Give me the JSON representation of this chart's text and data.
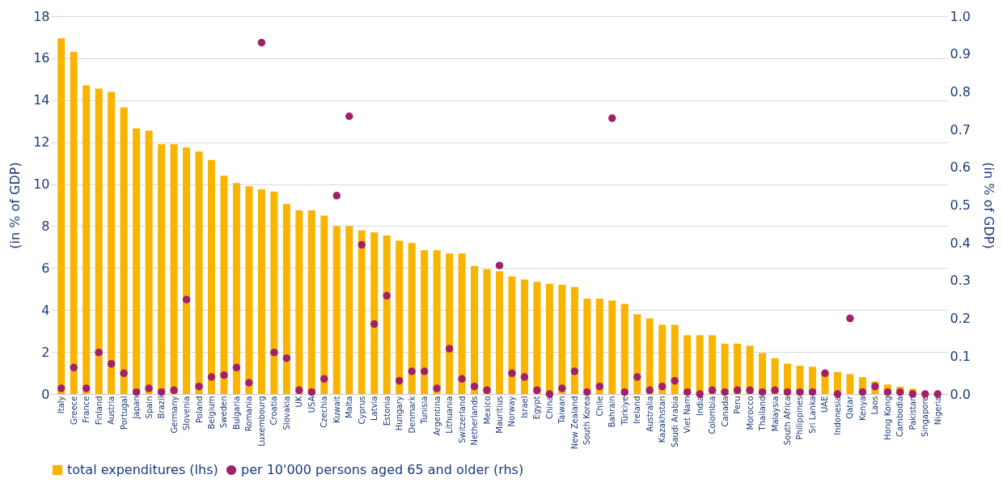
{
  "chart_data": {
    "type": "bar",
    "ylabel": "(in % of GDP)",
    "y2label": "(in % of GDP)",
    "categories": [
      "Italy",
      "Greece",
      "France",
      "Finland",
      "Austria",
      "Portugal",
      "Japan",
      "Spain",
      "Brazil",
      "Germany",
      "Slovenia",
      "Poland",
      "Belgium",
      "Sweden",
      "Bulgaria",
      "Romania",
      "Luxembourg",
      "Croatia",
      "Slovakia",
      "UK",
      "USA",
      "Czechia",
      "Kuwait",
      "Malta",
      "Cyprus",
      "Latvia",
      "Estonia",
      "Hungary",
      "Denmark",
      "Tunisia",
      "Argentina",
      "Lithuania",
      "Switzerland",
      "Netherlands",
      "Mexico",
      "Mauritius",
      "Norway",
      "Israel",
      "Egypt",
      "China",
      "Taiwan",
      "New Zealand",
      "South Korea",
      "Chile",
      "Bahrain",
      "Türkiye",
      "Ireland",
      "Australia",
      "Kazakhstan",
      "Saudi Arabia",
      "Viet Nam",
      "India",
      "Colombia",
      "Canada",
      "Peru",
      "Morocco",
      "Thailand",
      "Malaysia",
      "South Africa",
      "Philippines",
      "Sri Lanka",
      "UAE",
      "Indonesia",
      "Qatar",
      "Kenya",
      "Laos",
      "Hong Kong",
      "Cambodia",
      "Pakistan",
      "Singapore",
      "Nigeria"
    ],
    "series": [
      {
        "name": "total expenditures (lhs)",
        "type": "bar",
        "color": "#f9b400",
        "values": [
          16.95,
          16.3,
          14.7,
          14.55,
          14.4,
          13.65,
          12.65,
          12.55,
          11.9,
          11.9,
          11.75,
          11.55,
          11.15,
          10.4,
          10.05,
          9.9,
          9.75,
          9.65,
          9.05,
          8.75,
          8.75,
          8.5,
          8.0,
          8.0,
          7.8,
          7.7,
          7.55,
          7.3,
          7.2,
          6.85,
          6.85,
          6.7,
          6.7,
          6.1,
          5.95,
          5.85,
          5.6,
          5.45,
          5.35,
          5.25,
          5.2,
          5.1,
          4.55,
          4.55,
          4.45,
          4.3,
          3.8,
          3.6,
          3.3,
          3.3,
          2.8,
          2.8,
          2.8,
          2.4,
          2.4,
          2.3,
          1.95,
          1.7,
          1.45,
          1.35,
          1.3,
          1.1,
          1.05,
          0.95,
          0.8,
          0.6,
          0.45,
          0.35,
          0.25,
          0.0,
          0.0
        ]
      },
      {
        "name": "per 10'000 persons aged 65 and older (rhs)",
        "type": "scatter",
        "axis": "y2",
        "color": "#a0206a",
        "values": [
          0.015,
          0.07,
          0.015,
          0.11,
          0.08,
          0.055,
          0.005,
          0.015,
          0.005,
          0.01,
          0.25,
          0.02,
          0.045,
          0.05,
          0.07,
          0.03,
          0.93,
          0.11,
          0.095,
          0.01,
          0.005,
          0.04,
          0.525,
          0.735,
          0.395,
          0.185,
          0.26,
          0.035,
          0.06,
          0.06,
          0.015,
          0.12,
          0.04,
          0.02,
          0.01,
          0.34,
          0.055,
          0.045,
          0.01,
          0.0,
          0.015,
          0.06,
          0.005,
          0.02,
          0.73,
          0.005,
          0.045,
          0.01,
          0.02,
          0.035,
          0.005,
          0.0,
          0.01,
          0.005,
          0.01,
          0.01,
          0.005,
          0.01,
          0.005,
          0.005,
          0.005,
          0.055,
          0.0,
          0.2,
          0.005,
          0.02,
          0.005,
          0.005,
          0.0,
          0.0,
          0.0
        ]
      }
    ],
    "ylim": [
      0,
      18
    ],
    "yticks": [
      0,
      2,
      4,
      6,
      8,
      10,
      12,
      14,
      16,
      18
    ],
    "y2lim": [
      0,
      1.0
    ],
    "y2ticks": [
      {
        "value": 0,
        "label": "0.0"
      },
      0.1,
      0.2,
      0.3,
      0.4,
      0.5,
      0.6,
      0.7,
      0.8,
      0.9,
      {
        "value": 1,
        "label": "1.0"
      }
    ],
    "grid": "y",
    "legend": "bottom",
    "marker": "circle"
  }
}
